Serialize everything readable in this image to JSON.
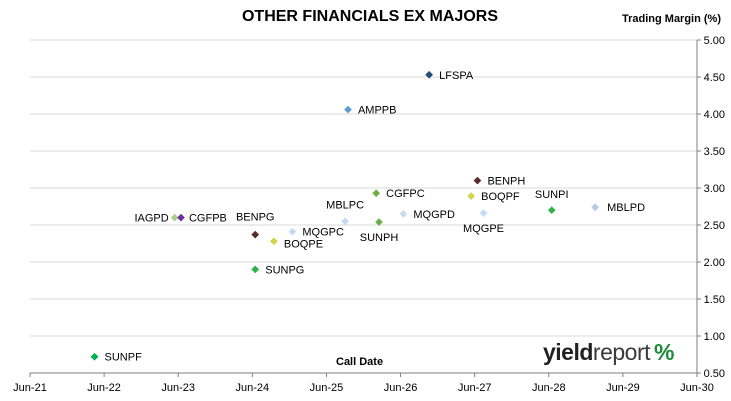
{
  "chart_data": {
    "type": "scatter",
    "title": "OTHER FINANCIALS EX MAJORS",
    "xlabel": "Call Date",
    "ylabel": "Trading Margin (%)",
    "xlim": [
      "2021-06-01",
      "2030-06-01"
    ],
    "ylim": [
      0.5,
      5.0
    ],
    "x_ticks": [
      "Jun-21",
      "Jun-22",
      "Jun-23",
      "Jun-24",
      "Jun-25",
      "Jun-26",
      "Jun-27",
      "Jun-28",
      "Jun-29",
      "Jun-30"
    ],
    "y_ticks": [
      "0.50",
      "1.00",
      "1.50",
      "2.00",
      "2.50",
      "3.00",
      "3.50",
      "4.00",
      "4.50",
      "5.00"
    ],
    "grid": "horizontal",
    "points": [
      {
        "label": "LFSPA",
        "x": "2026-10-20",
        "y": 4.53,
        "color": "#1f4e79"
      },
      {
        "label": "AMPPB",
        "x": "2025-09-15",
        "y": 4.06,
        "color": "#5b9bd5"
      },
      {
        "label": "BENPH",
        "x": "2027-06-15",
        "y": 3.1,
        "color": "#5c2a2a"
      },
      {
        "label": "CGFPC",
        "x": "2026-02-01",
        "y": 2.93,
        "color": "#70ad47"
      },
      {
        "label": "BOQPF",
        "x": "2027-05-15",
        "y": 2.89,
        "color": "#d4d44a"
      },
      {
        "label": "SUNPI",
        "x": "2028-06-15",
        "y": 2.7,
        "color": "#2db34a"
      },
      {
        "label": "MBLPD",
        "x": "2029-01-15",
        "y": 2.74,
        "color": "#b4c7e7"
      },
      {
        "label": "MBLPC",
        "x": "2025-09-01",
        "y": 2.55,
        "color": "#c5d9f1"
      },
      {
        "label": "MQGPD",
        "x": "2026-06-15",
        "y": 2.65,
        "color": "#c5d9f1"
      },
      {
        "label": "MQGPE",
        "x": "2027-07-15",
        "y": 2.66,
        "color": "#c5d9f1"
      },
      {
        "label": "SUNPH",
        "x": "2026-02-15",
        "y": 2.54,
        "color": "#70ad47"
      },
      {
        "label": "IAGPD",
        "x": "2023-05-15",
        "y": 2.6,
        "color": "#a9d18e"
      },
      {
        "label": "CGFPB",
        "x": "2023-06-15",
        "y": 2.6,
        "color": "#7030a0"
      },
      {
        "label": "BENPG",
        "x": "2024-06-15",
        "y": 2.37,
        "color": "#5c2a2a"
      },
      {
        "label": "MQGPC",
        "x": "2024-12-15",
        "y": 2.41,
        "color": "#c5d9f1"
      },
      {
        "label": "BOQPE",
        "x": "2024-09-15",
        "y": 2.28,
        "color": "#d4d44a"
      },
      {
        "label": "SUNPG",
        "x": "2024-06-15",
        "y": 1.9,
        "color": "#2db34a"
      },
      {
        "label": "SUNPF",
        "x": "2022-04-15",
        "y": 0.72,
        "color": "#00b050"
      }
    ]
  },
  "logo": {
    "part1": "yield",
    "part2": "report",
    "symbol": "%"
  }
}
